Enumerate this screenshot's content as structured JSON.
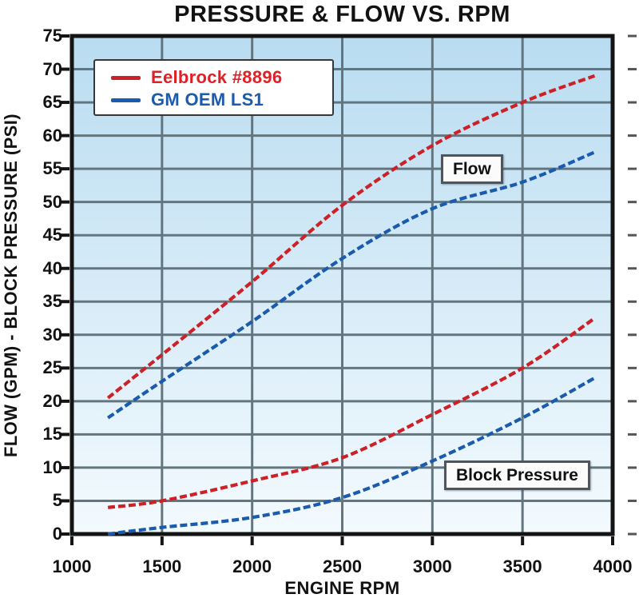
{
  "chart_data": {
    "type": "line",
    "title": "PRESSURE & FLOW VS. RPM",
    "xlabel": "ENGINE RPM",
    "ylabel": "FLOW (GPM) - BLOCK PRESSURE (PSI)",
    "xlim": [
      1000,
      4000
    ],
    "ylim": [
      0,
      75
    ],
    "x_ticks": [
      1000,
      1500,
      2000,
      2500,
      3000,
      3500,
      4000
    ],
    "y_ticks": [
      0,
      5,
      10,
      15,
      20,
      25,
      30,
      35,
      40,
      45,
      50,
      55,
      60,
      65,
      70,
      75
    ],
    "grid": true,
    "legend_position": "top-left",
    "x": [
      1200,
      1500,
      2000,
      2500,
      3000,
      3500,
      3900
    ],
    "series": [
      {
        "name": "Eelbrock #8896 Flow",
        "legend_label": "Eelbrock #8896",
        "measure": "Flow",
        "color": "#cc2127",
        "values": [
          20.5,
          27,
          38,
          49.5,
          58.5,
          65,
          69
        ]
      },
      {
        "name": "GM OEM LS1 Flow",
        "legend_label": "GM OEM LS1",
        "measure": "Flow",
        "color": "#1b5bad",
        "values": [
          17.5,
          23,
          32,
          41.5,
          49,
          53,
          57.5
        ]
      },
      {
        "name": "Eelbrock #8896 Block Pressure",
        "measure": "Block Pressure",
        "color": "#cc2127",
        "values": [
          4,
          5,
          8,
          11.5,
          18,
          25,
          32.5
        ]
      },
      {
        "name": "GM OEM LS1 Block Pressure",
        "measure": "Block Pressure",
        "color": "#1b5bad",
        "values": [
          0,
          1,
          2.5,
          5.5,
          11,
          17.5,
          23.5
        ]
      }
    ],
    "annotations": [
      {
        "text": "Flow"
      },
      {
        "text": "Block Pressure"
      }
    ]
  },
  "legend": {
    "items": [
      {
        "label": "Eelbrock #8896",
        "color": "#e02026"
      },
      {
        "label": "GM OEM LS1",
        "color": "#1b5bad"
      }
    ]
  },
  "colors": {
    "page_background": "#ffffff",
    "plot_gradient_top": "#b9dcf1",
    "plot_gradient_bottom": "#f3fafe",
    "gridline": "#63767f",
    "axis": "#141414",
    "red_series": "#cc2127",
    "blue_series": "#1b5bad",
    "text": "#121212",
    "annotation_border": "#4f555a"
  }
}
